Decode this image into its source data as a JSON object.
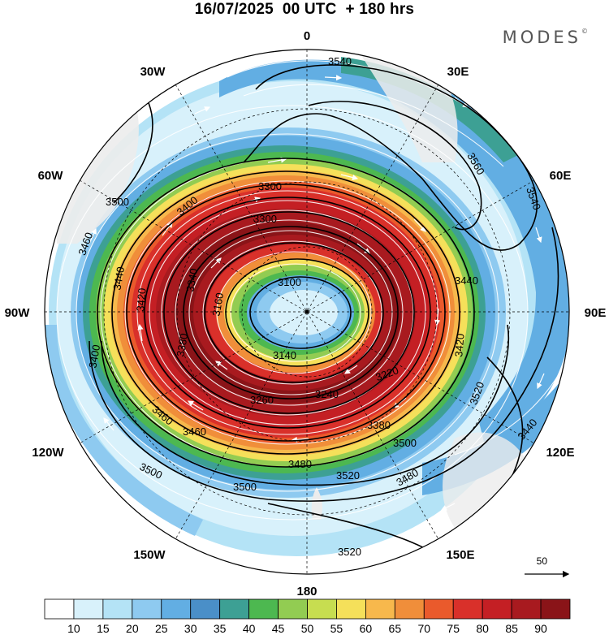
{
  "header": {
    "title": "16/07/2025  00 UTC  + 180 hrs",
    "brand": "MODES",
    "brand_mark": "©"
  },
  "map": {
    "projection": "south-polar-stereographic",
    "longitude_labels": {
      "top": "0",
      "top_left": "30W",
      "top_right": "30E",
      "upper_left": "60W",
      "upper_right": "60E",
      "left": "90W",
      "right": "90E",
      "lower_left": "120W",
      "lower_right": "120E",
      "bottom_left": "150W",
      "bottom_right": "150E",
      "bottom": "180"
    },
    "contour_labels": [
      "3540",
      "3560",
      "3540",
      "3500",
      "3460",
      "3440",
      "3420",
      "3400",
      "3380",
      "3340",
      "3300",
      "3100",
      "3140",
      "3160",
      "3220",
      "3240",
      "3260",
      "3300",
      "3380",
      "3420",
      "3440",
      "3460",
      "3480",
      "3500",
      "3520",
      "3520",
      "3520",
      "3500",
      "3480",
      "3460",
      "3400",
      "3500",
      "3440"
    ],
    "reference_vector_label": "50",
    "colors": {
      "land": "#ececec",
      "wind_arrow": "#ffffff",
      "contour": "#000000"
    }
  },
  "colorbar": {
    "labels": [
      "10",
      "15",
      "20",
      "25",
      "30",
      "35",
      "40",
      "45",
      "50",
      "55",
      "60",
      "65",
      "70",
      "75",
      "80",
      "85",
      "90"
    ],
    "colors": [
      "#ffffff",
      "#d8f1fb",
      "#b4e3f6",
      "#8ecaf0",
      "#62aee3",
      "#4a8fc8",
      "#3da094",
      "#4db850",
      "#92cc52",
      "#c7dd50",
      "#f5e05a",
      "#f7b84c",
      "#f08e3a",
      "#ea5a2c",
      "#d9302a",
      "#c41f24",
      "#a81a1f",
      "#8a1418"
    ]
  }
}
